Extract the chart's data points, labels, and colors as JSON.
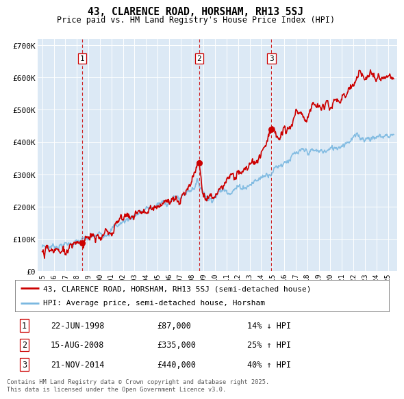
{
  "title": "43, CLARENCE ROAD, HORSHAM, RH13 5SJ",
  "subtitle": "Price paid vs. HM Land Registry's House Price Index (HPI)",
  "background_color": "#dce9f5",
  "ylim": [
    0,
    720000
  ],
  "yticks": [
    0,
    100000,
    200000,
    300000,
    400000,
    500000,
    600000,
    700000
  ],
  "ytick_labels": [
    "£0",
    "£100K",
    "£200K",
    "£300K",
    "£400K",
    "£500K",
    "£600K",
    "£700K"
  ],
  "xlim_start": 1994.6,
  "xlim_end": 2025.8,
  "sale_years": [
    1998.47,
    2008.62,
    2014.89
  ],
  "sale_prices": [
    87000,
    335000,
    440000
  ],
  "sale_labels": [
    "1",
    "2",
    "3"
  ],
  "sale_info": [
    {
      "num": "1",
      "date": "22-JUN-1998",
      "price": "£87,000",
      "pct": "14% ↓ HPI"
    },
    {
      "num": "2",
      "date": "15-AUG-2008",
      "price": "£335,000",
      "pct": "25% ↑ HPI"
    },
    {
      "num": "3",
      "date": "21-NOV-2014",
      "price": "£440,000",
      "pct": "40% ↑ HPI"
    }
  ],
  "legend_entries": [
    {
      "label": "43, CLARENCE ROAD, HORSHAM, RH13 5SJ (semi-detached house)",
      "color": "#cc0000"
    },
    {
      "label": "HPI: Average price, semi-detached house, Horsham",
      "color": "#7ab8e0"
    }
  ],
  "footer": "Contains HM Land Registry data © Crown copyright and database right 2025.\nThis data is licensed under the Open Government Licence v3.0.",
  "sale_line_color": "#cc0000",
  "hpi_line_color": "#7ab8e0",
  "vline_color": "#cc0000",
  "hpi_keypoints": [
    [
      1995.0,
      75000
    ],
    [
      1997.0,
      82000
    ],
    [
      1999.0,
      98000
    ],
    [
      2001.0,
      130000
    ],
    [
      2003.0,
      175000
    ],
    [
      2005.0,
      205000
    ],
    [
      2007.0,
      230000
    ],
    [
      2008.5,
      275000
    ],
    [
      2009.5,
      222000
    ],
    [
      2010.5,
      248000
    ],
    [
      2012.0,
      258000
    ],
    [
      2013.0,
      268000
    ],
    [
      2014.0,
      290000
    ],
    [
      2015.0,
      315000
    ],
    [
      2016.0,
      340000
    ],
    [
      2017.0,
      360000
    ],
    [
      2018.0,
      370000
    ],
    [
      2019.0,
      370000
    ],
    [
      2020.0,
      375000
    ],
    [
      2021.0,
      395000
    ],
    [
      2022.0,
      415000
    ],
    [
      2023.0,
      415000
    ],
    [
      2024.0,
      415000
    ],
    [
      2025.5,
      425000
    ]
  ],
  "red_keypoints": [
    [
      1995.0,
      60000
    ],
    [
      1997.0,
      67000
    ],
    [
      1998.47,
      87000
    ],
    [
      1999.5,
      105000
    ],
    [
      2001.0,
      133000
    ],
    [
      2003.0,
      180000
    ],
    [
      2004.5,
      198000
    ],
    [
      2006.0,
      215000
    ],
    [
      2007.5,
      240000
    ],
    [
      2008.62,
      335000
    ],
    [
      2008.9,
      240000
    ],
    [
      2009.3,
      218000
    ],
    [
      2009.8,
      230000
    ],
    [
      2010.5,
      258000
    ],
    [
      2011.5,
      295000
    ],
    [
      2012.5,
      315000
    ],
    [
      2013.5,
      330000
    ],
    [
      2014.89,
      440000
    ],
    [
      2015.5,
      390000
    ],
    [
      2016.0,
      430000
    ],
    [
      2017.0,
      475000
    ],
    [
      2018.0,
      490000
    ],
    [
      2019.0,
      500000
    ],
    [
      2020.0,
      510000
    ],
    [
      2021.0,
      530000
    ],
    [
      2022.0,
      570000
    ],
    [
      2022.5,
      615000
    ],
    [
      2023.0,
      590000
    ],
    [
      2023.5,
      610000
    ],
    [
      2024.0,
      590000
    ],
    [
      2024.5,
      610000
    ],
    [
      2025.5,
      600000
    ]
  ]
}
